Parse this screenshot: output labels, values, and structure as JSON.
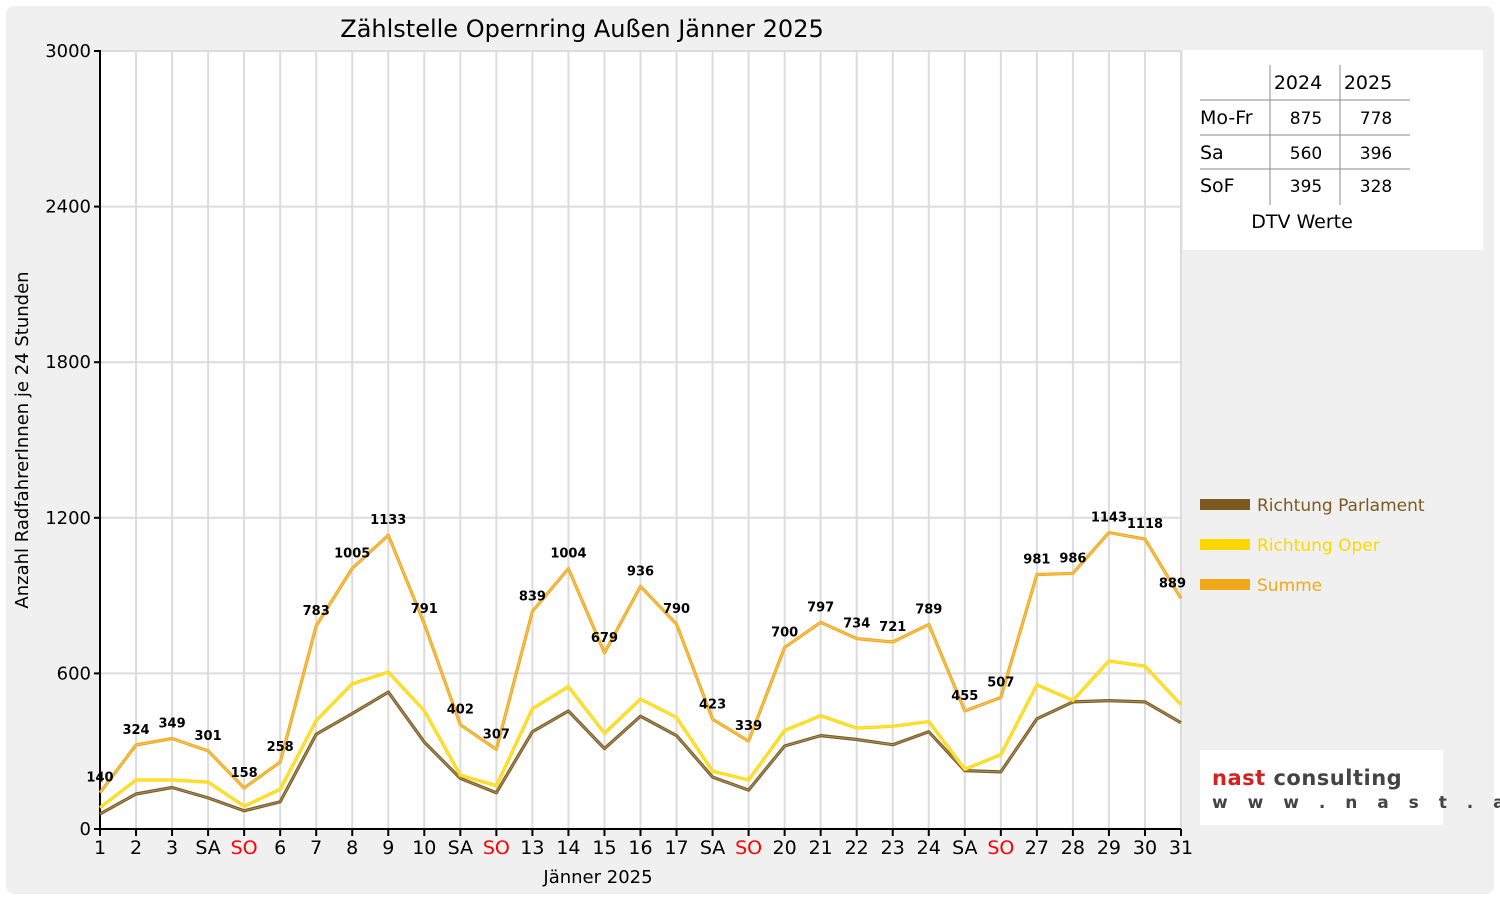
{
  "chart_data": {
    "type": "line",
    "title": "Zählstelle Opernring Außen Jänner 2025",
    "xlabel": "Jänner 2025",
    "ylabel": "Anzahl RadfahrerInnen je 24 Stunden",
    "ylim": [
      0,
      3000
    ],
    "yticks": [
      "0",
      "600",
      "1200",
      "1800",
      "2400",
      "3000"
    ],
    "grid": true,
    "legend_position": "right",
    "categories": [
      "1",
      "2",
      "3",
      "SA",
      "SO",
      "6",
      "7",
      "8",
      "9",
      "10",
      "SA",
      "SO",
      "13",
      "14",
      "15",
      "16",
      "17",
      "SA",
      "SO",
      "20",
      "21",
      "22",
      "23",
      "24",
      "SA",
      "SO",
      "27",
      "28",
      "29",
      "30",
      "31"
    ],
    "weekend_sunday_color": "#ff0000",
    "series": [
      {
        "name": "Richtung Parlament",
        "color": "#7a5a1e",
        "values": [
          58,
          135,
          160,
          120,
          70,
          105,
          365,
          445,
          528,
          335,
          195,
          140,
          375,
          455,
          310,
          435,
          360,
          200,
          150,
          320,
          360,
          345,
          325,
          375,
          225,
          220,
          425,
          490,
          495,
          490,
          410
        ]
      },
      {
        "name": "Richtung Oper",
        "color": "#ffd700",
        "values": [
          82,
          189,
          189,
          181,
          88,
          153,
          418,
          560,
          605,
          456,
          207,
          167,
          464,
          549,
          369,
          501,
          430,
          223,
          189,
          380,
          437,
          389,
          396,
          414,
          230,
          287,
          556,
          496,
          648,
          628,
          479
        ]
      },
      {
        "name": "Summe",
        "color": "#f0a818",
        "values": [
          140,
          324,
          349,
          301,
          158,
          258,
          783,
          1005,
          1133,
          791,
          402,
          307,
          839,
          1004,
          679,
          936,
          790,
          423,
          339,
          700,
          797,
          734,
          721,
          789,
          455,
          507,
          981,
          986,
          1143,
          1118,
          889
        ]
      }
    ],
    "data_labels": [
      "140",
      "324",
      "349",
      "301",
      "158",
      "258",
      "783",
      "1005",
      "1133",
      "791",
      "402",
      "307",
      "839",
      "1004",
      "679",
      "936",
      "790",
      "423",
      "339",
      "700",
      "797",
      "734",
      "721",
      "789",
      "455",
      "507",
      "981",
      "986",
      "1143",
      "1118",
      "889"
    ]
  },
  "dtv_table": {
    "header": [
      "",
      "2024",
      "2025"
    ],
    "rows": [
      {
        "label": "Mo-Fr",
        "v2024": "875",
        "v2025": "778"
      },
      {
        "label": "Sa",
        "v2024": "560",
        "v2025": "396"
      },
      {
        "label": "SoF",
        "v2024": "395",
        "v2025": "328"
      }
    ],
    "caption": "DTV Werte"
  },
  "logo": {
    "name": "nast consulting",
    "url": "w w w . n a s t . a t",
    "name_color": "#444444",
    "accent_color": "#d42020"
  }
}
